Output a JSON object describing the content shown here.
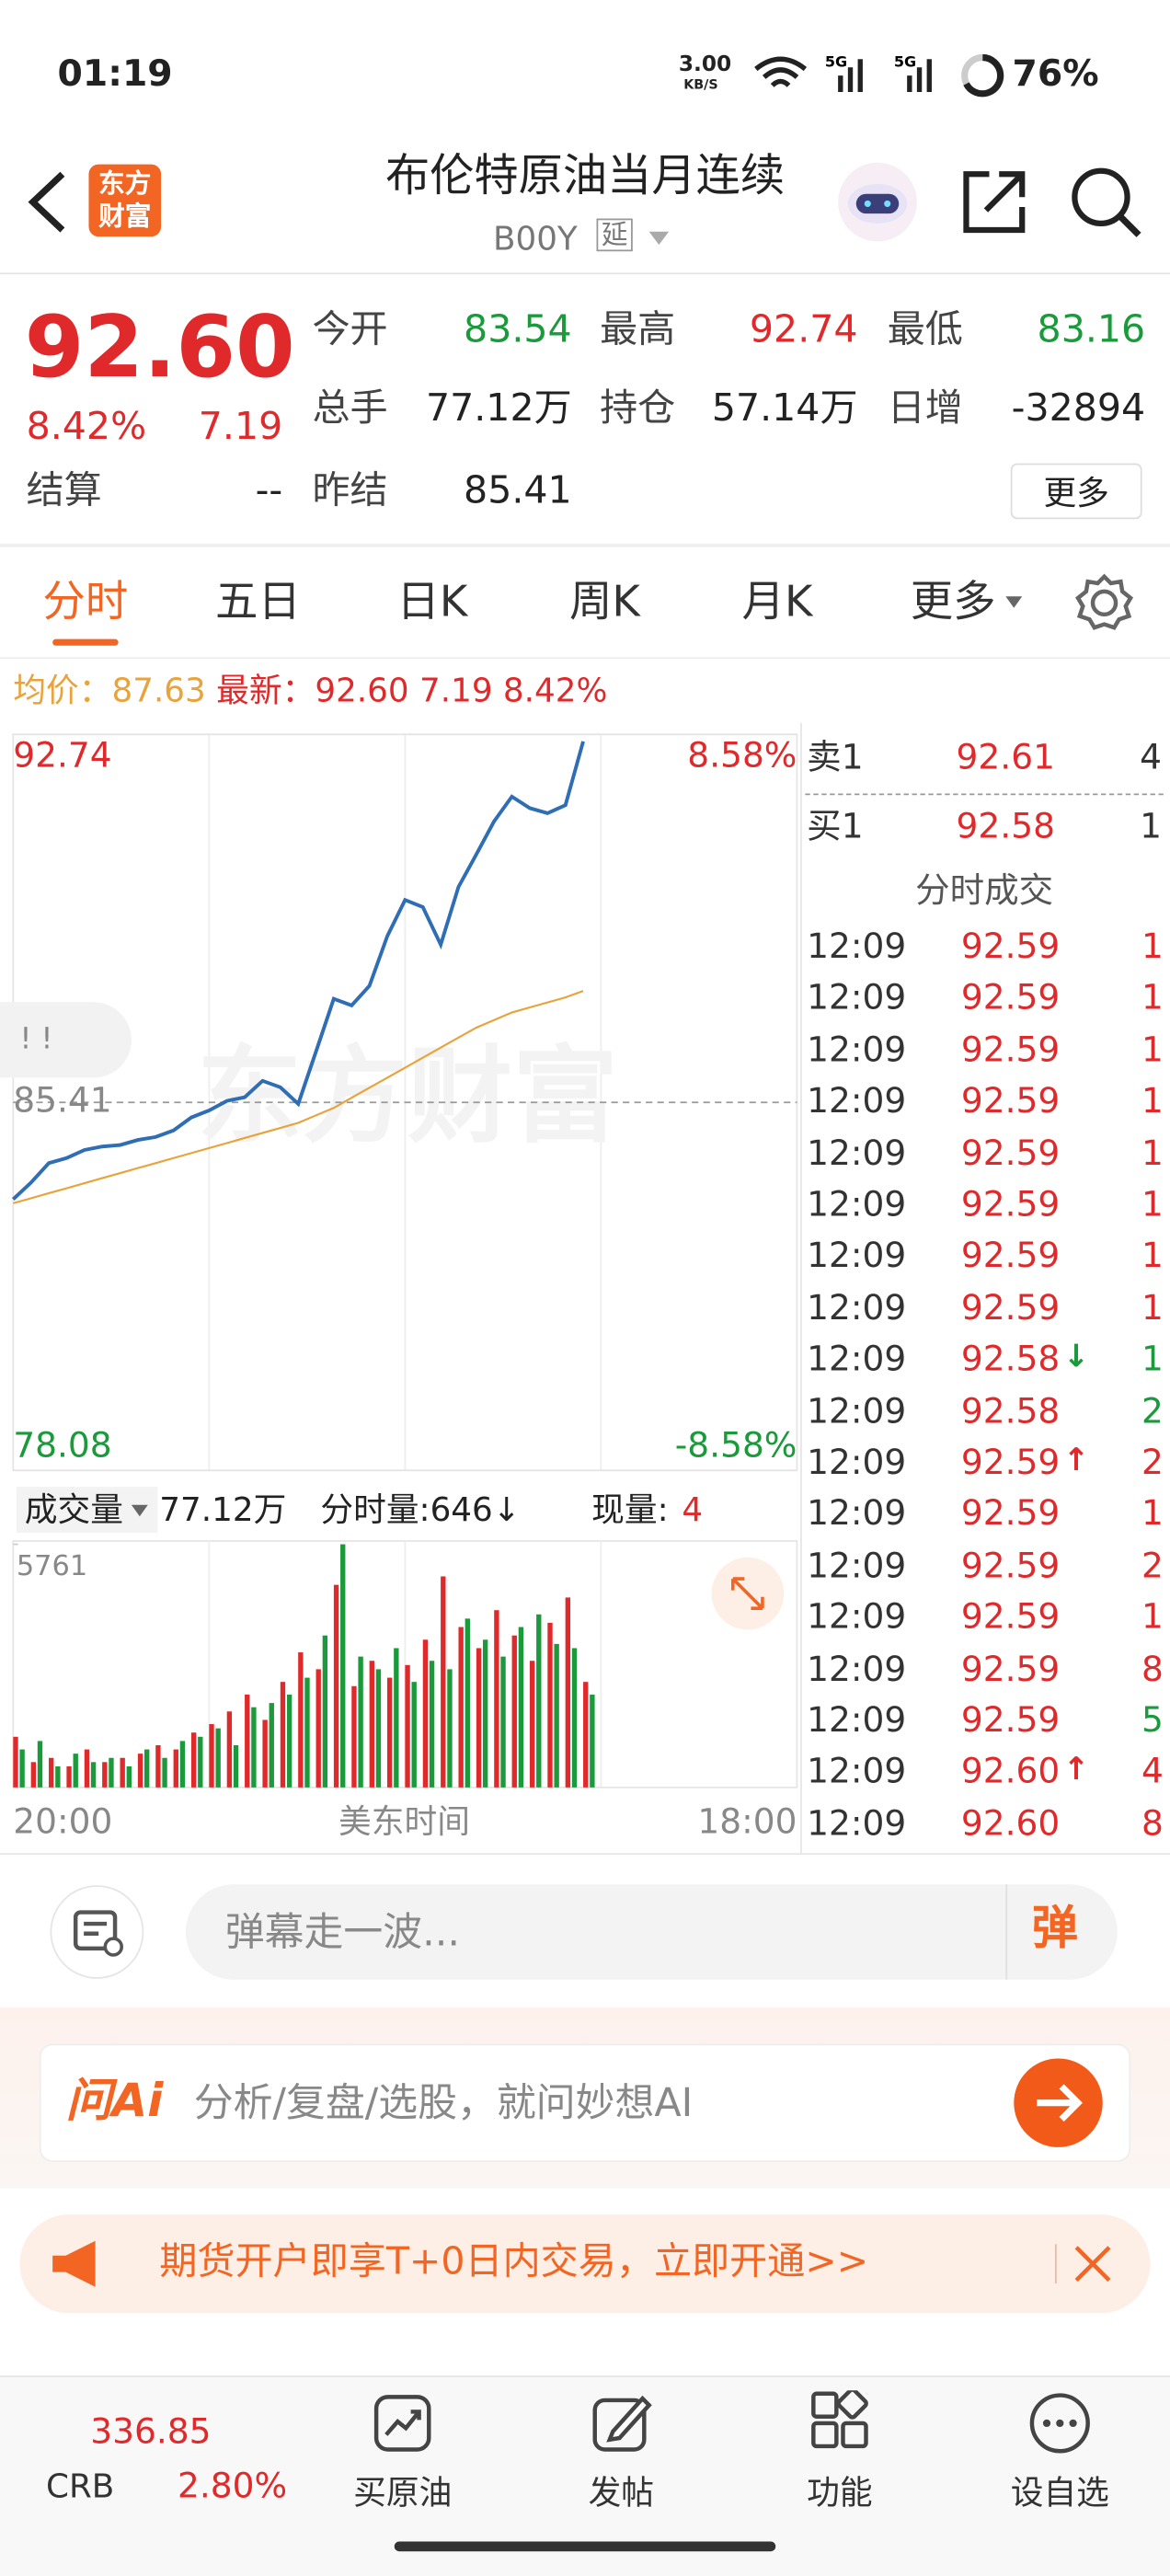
{
  "status": {
    "time": "01:19",
    "speed": "3.00",
    "speed_unit": "KB/S",
    "battery": "76%"
  },
  "header": {
    "logo": "东方财富",
    "title": "布伦特原油当月连续",
    "code": "B00Y",
    "tag": "延"
  },
  "quote": {
    "price": "92.60",
    "change_pct": "8.42%",
    "change": "7.19",
    "fields": [
      {
        "label": "今开",
        "value": "83.54",
        "color": "#1a9a3a"
      },
      {
        "label": "最高",
        "value": "92.74",
        "color": "#e0292b"
      },
      {
        "label": "最低",
        "value": "83.16",
        "color": "#1a9a3a"
      },
      {
        "label": "总手",
        "value": "77.12万",
        "color": "#222222"
      },
      {
        "label": "持仓",
        "value": "57.14万",
        "color": "#222222"
      },
      {
        "label": "日增",
        "value": "-32894",
        "color": "#222222"
      }
    ],
    "settle": {
      "label": "结算",
      "value": "--"
    },
    "prev_settle": {
      "label": "昨结",
      "value": "85.41"
    },
    "more": "更多"
  },
  "tabs": {
    "items": [
      "分时",
      "五日",
      "日K",
      "周K",
      "月K",
      "更多"
    ],
    "active": 0
  },
  "info_bar": {
    "avg_label": "均价：",
    "avg": "87.63",
    "latest_label": "最新：",
    "latest": "92.60",
    "change": "7.19",
    "change_pct": "8.42%"
  },
  "chart_data": [
    {
      "type": "line",
      "watermark": "东方财富",
      "x_label": "美东时间",
      "categories": [
        "20:00",
        null,
        null,
        null,
        null,
        null,
        null,
        null,
        null,
        null,
        null,
        null,
        null,
        null,
        null,
        null,
        null,
        null,
        null,
        null,
        null,
        null,
        null,
        null,
        null,
        null,
        null,
        null,
        null,
        null,
        null,
        null,
        null,
        null,
        null,
        null,
        null,
        null,
        null,
        null,
        null,
        null,
        null,
        null,
        "18:00"
      ],
      "series": [
        {
          "color": "#2f6db5",
          "values": [
            83.48,
            83.81,
            84.2,
            84.3,
            84.46,
            84.53,
            84.56,
            84.66,
            84.72,
            84.85,
            85.11,
            85.25,
            85.44,
            85.51,
            85.84,
            85.71,
            85.38,
            86.42,
            87.47,
            87.34,
            87.73,
            88.72,
            89.44,
            89.3,
            88.55,
            89.7,
            90.35,
            91.01,
            91.5,
            91.27,
            91.17,
            91.33,
            92.6,
            null,
            null,
            null,
            null,
            null,
            null,
            null,
            null,
            null,
            null,
            null,
            null
          ]
        },
        {
          "color": "#e8a33a",
          "values": [
            83.4,
            83.5,
            83.6,
            83.7,
            83.8,
            83.9,
            84.0,
            84.1,
            84.2,
            84.3,
            84.4,
            84.5,
            84.6,
            84.7,
            84.8,
            84.9,
            85.0,
            85.15,
            85.3,
            85.5,
            85.7,
            85.9,
            86.1,
            86.3,
            86.5,
            86.7,
            86.9,
            87.05,
            87.2,
            87.3,
            87.4,
            87.5,
            87.63,
            null,
            null,
            null,
            null,
            null,
            null,
            null,
            null,
            null,
            null,
            null,
            null
          ]
        }
      ],
      "ylim": [
        78.08,
        92.74
      ],
      "yticks": [
        92.74,
        85.41,
        78.08
      ],
      "ytick_colors": [
        "#e0292b",
        "#888888",
        "#1a9a3a"
      ],
      "y2lim": [
        -8.58,
        8.58
      ],
      "y2ticks": [
        {
          "value": 8.58,
          "label": "8.58%"
        },
        {
          "value": -8.58,
          "label": "-8.58%"
        }
      ],
      "y2tick_colors": [
        "#e0292b",
        "#1a9a3a"
      ]
    },
    {
      "type": "bar",
      "title": "成交量",
      "total": "77.12万",
      "period_volume": "分时量:646↓",
      "current_label": "现量:",
      "current": "4",
      "categories": [
        "20:00",
        null,
        null,
        null,
        null,
        null,
        null,
        null,
        null,
        null,
        null,
        null,
        null,
        null,
        null,
        null,
        null,
        null,
        null,
        null,
        null,
        null,
        null,
        null,
        null,
        null,
        null,
        null,
        null,
        null,
        null,
        null,
        null,
        null,
        null,
        null,
        null,
        null,
        null,
        null,
        null,
        null,
        null,
        null,
        "18:00"
      ],
      "series": [
        {
          "color": "#e0292b",
          "values": [
            1200,
            600,
            700,
            500,
            900,
            600,
            700,
            800,
            1000,
            900,
            1300,
            1500,
            1800,
            2200,
            1600,
            2500,
            3200,
            2800,
            4800,
            2400,
            3000,
            2600,
            2900,
            3500,
            5000,
            3800,
            3300,
            4200,
            3600,
            3000,
            3900,
            4500,
            2500,
            null,
            null,
            null,
            null,
            null,
            null,
            null,
            null,
            null,
            null,
            null,
            null
          ]
        },
        {
          "color": "#1a9a3a",
          "values": [
            900,
            1100,
            500,
            800,
            600,
            700,
            500,
            900,
            700,
            1100,
            1200,
            1400,
            1000,
            1900,
            2000,
            2200,
            2600,
            3600,
            5761,
            3100,
            2800,
            3300,
            2500,
            3000,
            2800,
            4000,
            3500,
            3100,
            3800,
            4100,
            3400,
            3300,
            2200,
            null,
            null,
            null,
            null,
            null,
            null,
            null,
            null,
            null,
            null,
            null,
            null
          ]
        }
      ],
      "ylim": [
        0,
        5761
      ],
      "yticks": [
        5761
      ]
    }
  ],
  "order_book": {
    "sell": {
      "label": "卖1",
      "price": "92.61",
      "volume": "4"
    },
    "buy": {
      "label": "买1",
      "price": "92.58",
      "volume": "1"
    },
    "title": "分时成交"
  },
  "trades": [
    {
      "time": "12:09",
      "price": "92.59",
      "volume": "1",
      "volume_color": "#e0292b"
    },
    {
      "time": "12:09",
      "price": "92.59",
      "volume": "1",
      "volume_color": "#e0292b"
    },
    {
      "time": "12:09",
      "price": "92.59",
      "volume": "1",
      "volume_color": "#e0292b"
    },
    {
      "time": "12:09",
      "price": "92.59",
      "volume": "1",
      "volume_color": "#e0292b"
    },
    {
      "time": "12:09",
      "price": "92.59",
      "volume": "1",
      "volume_color": "#e0292b"
    },
    {
      "time": "12:09",
      "price": "92.59",
      "volume": "1",
      "volume_color": "#e0292b"
    },
    {
      "time": "12:09",
      "price": "92.59",
      "volume": "1",
      "volume_color": "#e0292b"
    },
    {
      "time": "12:09",
      "price": "92.59",
      "volume": "1",
      "volume_color": "#e0292b"
    },
    {
      "time": "12:09",
      "price": "92.58",
      "arrow": "↓",
      "arrow_color": "#1a9a3a",
      "volume": "1",
      "volume_color": "#1a9a3a"
    },
    {
      "time": "12:09",
      "price": "92.58",
      "volume": "2",
      "volume_color": "#1a9a3a"
    },
    {
      "time": "12:09",
      "price": "92.59",
      "arrow": "↑",
      "arrow_color": "#e0292b",
      "volume": "2",
      "volume_color": "#e0292b"
    },
    {
      "time": "12:09",
      "price": "92.59",
      "volume": "1",
      "volume_color": "#e0292b"
    },
    {
      "time": "12:09",
      "price": "92.59",
      "volume": "2",
      "volume_color": "#e0292b"
    },
    {
      "time": "12:09",
      "price": "92.59",
      "volume": "1",
      "volume_color": "#e0292b"
    },
    {
      "time": "12:09",
      "price": "92.59",
      "volume": "8",
      "volume_color": "#e0292b"
    },
    {
      "time": "12:09",
      "price": "92.59",
      "volume": "5",
      "volume_color": "#1a9a3a"
    },
    {
      "time": "12:09",
      "price": "92.60",
      "arrow": "↑",
      "arrow_color": "#e0292b",
      "volume": "4",
      "volume_color": "#e0292b"
    },
    {
      "time": "12:09",
      "price": "92.60",
      "volume": "8",
      "volume_color": "#e0292b"
    }
  ],
  "comment": {
    "placeholder": "弹幕走一波...",
    "button": "弹"
  },
  "ai": {
    "logo": "问Ai",
    "placeholder": "分析/复盘/选股，就问妙想AI"
  },
  "banner": {
    "text": "期货开户即享T+0日内交易，立即开通>>"
  },
  "nav": {
    "index": {
      "value": "336.85",
      "name": "CRB",
      "change": "2.80%"
    },
    "items": [
      "买原油",
      "发帖",
      "功能",
      "设自选"
    ]
  }
}
